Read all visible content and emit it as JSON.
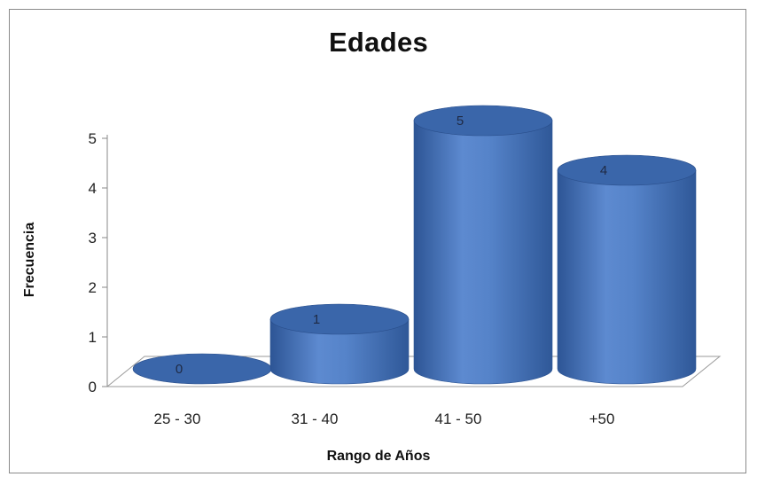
{
  "chart_data": {
    "type": "bar",
    "style": "3d-cylinder",
    "title": "Edades",
    "xlabel": "Rango de Años",
    "ylabel": "Frecuencia",
    "categories": [
      "25 - 30",
      "31 - 40",
      "41 - 50",
      "+50"
    ],
    "values": [
      0,
      1,
      5,
      4
    ],
    "data_labels": [
      "0",
      "1",
      "5",
      "4"
    ],
    "ylim": [
      0,
      5
    ],
    "yticks": [
      "0",
      "1",
      "2",
      "3",
      "4",
      "5"
    ],
    "grid": false,
    "legend": "none",
    "colors": {
      "bar_light": "#6b95d6",
      "bar_mid": "#4a78bf",
      "bar_dark": "#2d5595",
      "bar_top": "#3a66aa"
    }
  }
}
